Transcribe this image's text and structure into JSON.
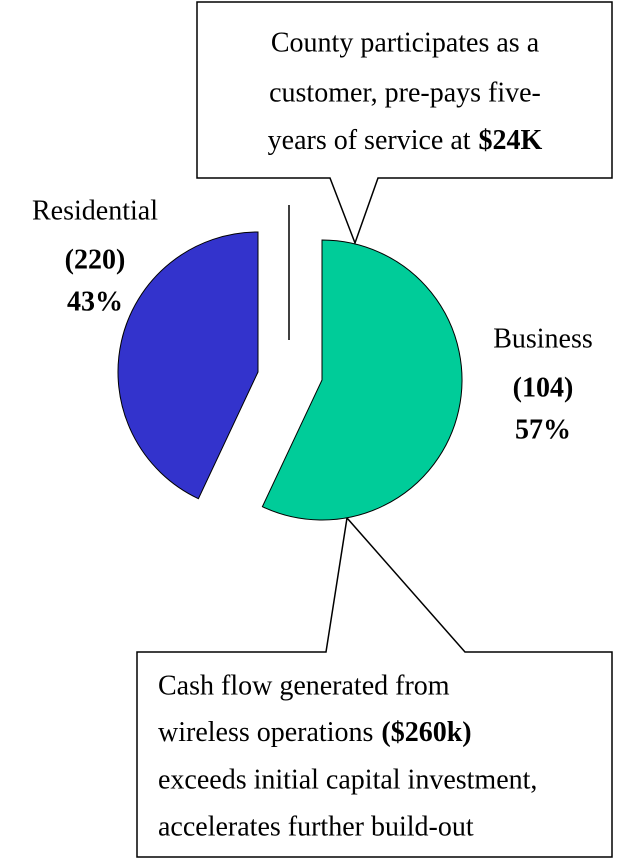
{
  "chart_data": {
    "type": "pie",
    "categories": [
      "Residential",
      "Business"
    ],
    "values": [
      43,
      57
    ],
    "value_labels": [
      "43%",
      "57%"
    ],
    "counts": [
      220,
      104
    ],
    "count_labels": [
      "(220)",
      "(104)"
    ],
    "colors": [
      "#3333cc",
      "#00cc99"
    ],
    "annotations": [
      {
        "lines": [
          "County participates as a",
          "customer, pre-pays five-",
          "years of service at"
        ],
        "bold": "$24K"
      },
      {
        "lines": [
          "Cash flow generated from",
          "wireless operations",
          "exceeds initial capital investment,",
          "accelerates further build-out"
        ],
        "bold": "($260k)"
      }
    ]
  }
}
